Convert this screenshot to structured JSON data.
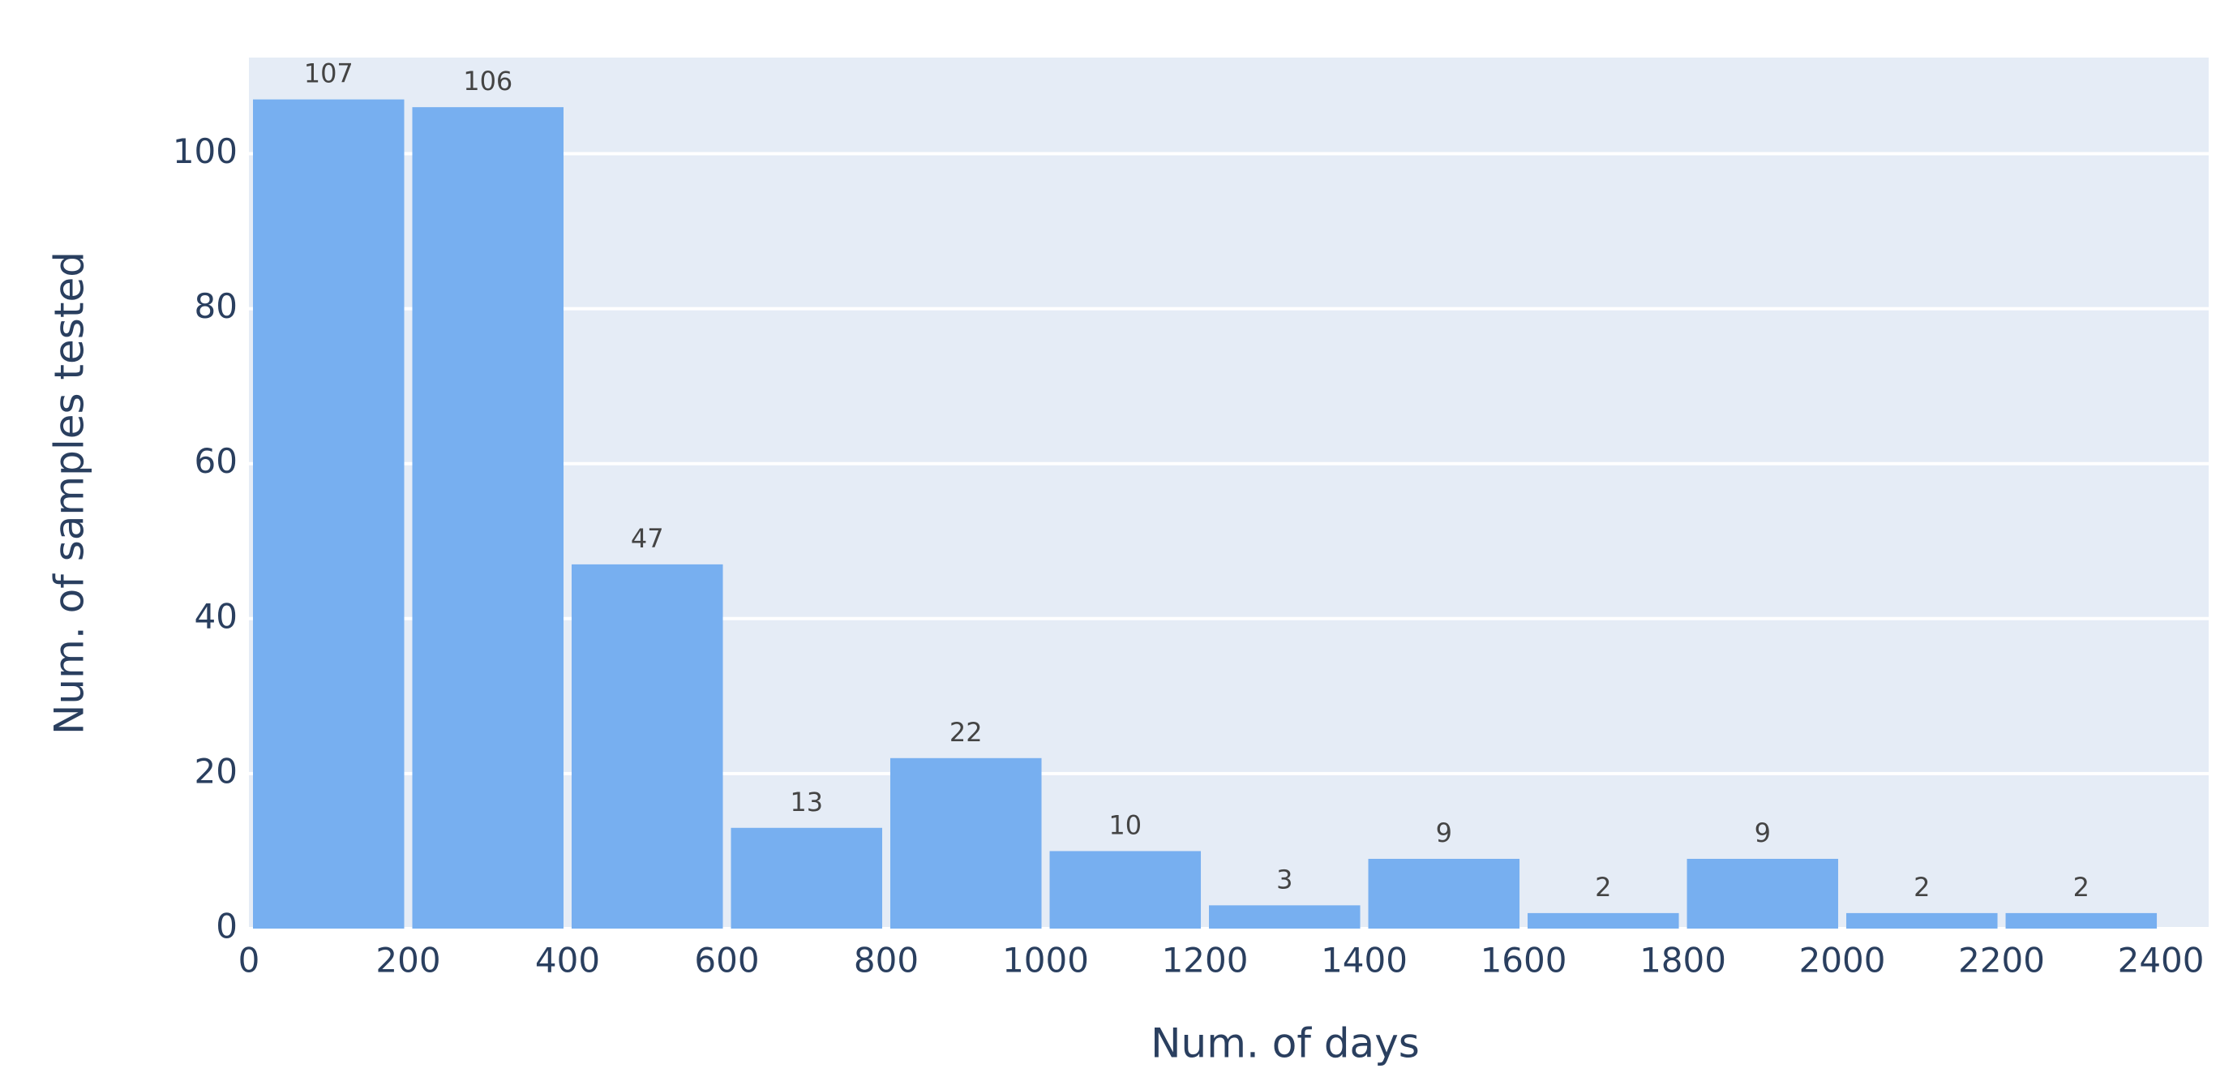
{
  "chart_data": {
    "type": "histogram",
    "x_label": "Num. of days",
    "y_label": "Num. of samples tested",
    "bins": [
      0,
      200,
      400,
      600,
      800,
      1000,
      1200,
      1400,
      1600,
      1800,
      2000,
      2200,
      2400
    ],
    "values": [
      107,
      106,
      47,
      13,
      22,
      10,
      3,
      9,
      2,
      9,
      2,
      2
    ],
    "color": "#77aff0",
    "xlim": [
      0,
      2460
    ],
    "ylim": [
      0,
      112.4
    ],
    "xticks": [
      0,
      200,
      400,
      600,
      800,
      1000,
      1200,
      1400,
      1600,
      1800,
      2000,
      2200,
      2400
    ],
    "yticks": [
      0,
      20,
      40,
      60,
      80,
      100
    ],
    "grid": "y"
  }
}
